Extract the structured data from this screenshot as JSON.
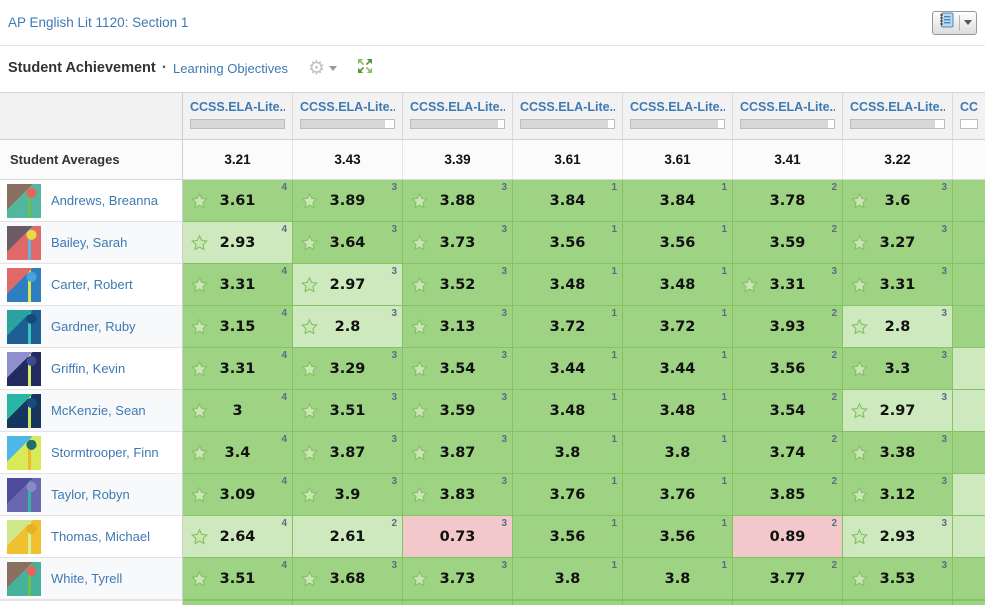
{
  "header": {
    "course_title": "AP English Lit 1120: Section 1"
  },
  "section": {
    "title": "Student Achievement",
    "separator": "·",
    "link": "Learning Objectives"
  },
  "colors": {
    "cell_high": "#9ed383",
    "cell_mid": "#cde9bd",
    "cell_low": "#f2c8cb",
    "cell_border": "#83c364",
    "link_blue": "#3e79b4",
    "count_gray": "#5b6b85"
  },
  "table": {
    "averages_label": "Student Averages",
    "columns": [
      {
        "label": "CCSS.ELA-Lite...",
        "progress_pct": 100,
        "average": "3.21"
      },
      {
        "label": "CCSS.ELA-Lite...",
        "progress_pct": 90,
        "average": "3.43"
      },
      {
        "label": "CCSS.ELA-Lite...",
        "progress_pct": 94,
        "average": "3.39"
      },
      {
        "label": "CCSS.ELA-Lite...",
        "progress_pct": 94,
        "average": "3.61"
      },
      {
        "label": "CCSS.ELA-Lite...",
        "progress_pct": 94,
        "average": "3.61"
      },
      {
        "label": "CCSS.ELA-Lite...",
        "progress_pct": 94,
        "average": "3.41"
      },
      {
        "label": "CCSS.ELA-Lite...",
        "progress_pct": 90,
        "average": "3.22"
      },
      {
        "label": "CCSS.ELA-Lite...",
        "progress_pct": 0,
        "average": "",
        "partial": true
      }
    ],
    "students": [
      {
        "name": "Andrews, Breanna",
        "avatar_colors": [
          "#52b79e",
          "#8a6e60",
          "#6fbf4e",
          "#e4645f"
        ],
        "scores": [
          {
            "value": "3.61",
            "count": "4",
            "star": true,
            "level": "high"
          },
          {
            "value": "3.89",
            "count": "3",
            "star": true,
            "level": "high"
          },
          {
            "value": "3.88",
            "count": "3",
            "star": true,
            "level": "high"
          },
          {
            "value": "3.84",
            "count": "1",
            "star": false,
            "level": "high"
          },
          {
            "value": "3.84",
            "count": "1",
            "star": false,
            "level": "high"
          },
          {
            "value": "3.78",
            "count": "2",
            "star": false,
            "level": "high"
          },
          {
            "value": "3.6",
            "count": "3",
            "star": true,
            "level": "high"
          },
          {
            "value": "",
            "count": "",
            "star": false,
            "level": "high",
            "partial": true
          }
        ]
      },
      {
        "name": "Bailey, Sarah",
        "avatar_colors": [
          "#e06a6a",
          "#6e5a66",
          "#5bb6e8",
          "#ead93f"
        ],
        "scores": [
          {
            "value": "2.93",
            "count": "4",
            "star": true,
            "level": "mid"
          },
          {
            "value": "3.64",
            "count": "3",
            "star": true,
            "level": "high"
          },
          {
            "value": "3.73",
            "count": "3",
            "star": true,
            "level": "high"
          },
          {
            "value": "3.56",
            "count": "1",
            "star": false,
            "level": "high"
          },
          {
            "value": "3.56",
            "count": "1",
            "star": false,
            "level": "high"
          },
          {
            "value": "3.59",
            "count": "2",
            "star": false,
            "level": "high"
          },
          {
            "value": "3.27",
            "count": "3",
            "star": true,
            "level": "high"
          },
          {
            "value": "",
            "count": "",
            "star": false,
            "level": "high",
            "partial": true
          }
        ]
      },
      {
        "name": "Carter, Robert",
        "avatar_colors": [
          "#2d7fc1",
          "#e06a6a",
          "#d9e84a",
          "#4aa3d8"
        ],
        "scores": [
          {
            "value": "3.31",
            "count": "4",
            "star": true,
            "level": "high"
          },
          {
            "value": "2.97",
            "count": "3",
            "star": true,
            "level": "mid"
          },
          {
            "value": "3.52",
            "count": "3",
            "star": true,
            "level": "high"
          },
          {
            "value": "3.48",
            "count": "1",
            "star": false,
            "level": "high"
          },
          {
            "value": "3.48",
            "count": "1",
            "star": false,
            "level": "high"
          },
          {
            "value": "3.31",
            "count": "3",
            "star": true,
            "level": "high"
          },
          {
            "value": "3.31",
            "count": "3",
            "star": true,
            "level": "high"
          },
          {
            "value": "",
            "count": "",
            "star": false,
            "level": "high",
            "partial": true
          }
        ]
      },
      {
        "name": "Gardner, Ruby",
        "avatar_colors": [
          "#1d5e94",
          "#2aa3a0",
          "#3cc3c0",
          "#17497a"
        ],
        "scores": [
          {
            "value": "3.15",
            "count": "4",
            "star": true,
            "level": "high"
          },
          {
            "value": "2.8",
            "count": "3",
            "star": true,
            "level": "mid"
          },
          {
            "value": "3.13",
            "count": "3",
            "star": true,
            "level": "high"
          },
          {
            "value": "3.72",
            "count": "1",
            "star": false,
            "level": "high"
          },
          {
            "value": "3.72",
            "count": "1",
            "star": false,
            "level": "high"
          },
          {
            "value": "3.93",
            "count": "2",
            "star": false,
            "level": "high"
          },
          {
            "value": "2.8",
            "count": "3",
            "star": true,
            "level": "mid"
          },
          {
            "value": "",
            "count": "",
            "star": false,
            "level": "high",
            "partial": true
          }
        ]
      },
      {
        "name": "Griffin, Kevin",
        "avatar_colors": [
          "#222b5e",
          "#8f8fd0",
          "#d6ef6a",
          "#3a4a8a"
        ],
        "scores": [
          {
            "value": "3.31",
            "count": "4",
            "star": true,
            "level": "high"
          },
          {
            "value": "3.29",
            "count": "3",
            "star": true,
            "level": "high"
          },
          {
            "value": "3.54",
            "count": "3",
            "star": true,
            "level": "high"
          },
          {
            "value": "3.44",
            "count": "1",
            "star": false,
            "level": "high"
          },
          {
            "value": "3.44",
            "count": "1",
            "star": false,
            "level": "high"
          },
          {
            "value": "3.56",
            "count": "2",
            "star": false,
            "level": "high"
          },
          {
            "value": "3.3",
            "count": "3",
            "star": true,
            "level": "high"
          },
          {
            "value": "",
            "count": "",
            "star": false,
            "level": "mid",
            "partial": true
          }
        ]
      },
      {
        "name": "McKenzie, Sean",
        "avatar_colors": [
          "#16355f",
          "#2ab5a5",
          "#cfe95a",
          "#1d4a7e"
        ],
        "scores": [
          {
            "value": "3",
            "count": "4",
            "star": true,
            "level": "high"
          },
          {
            "value": "3.51",
            "count": "3",
            "star": true,
            "level": "high"
          },
          {
            "value": "3.59",
            "count": "3",
            "star": true,
            "level": "high"
          },
          {
            "value": "3.48",
            "count": "1",
            "star": false,
            "level": "high"
          },
          {
            "value": "3.48",
            "count": "1",
            "star": false,
            "level": "high"
          },
          {
            "value": "3.54",
            "count": "2",
            "star": false,
            "level": "high"
          },
          {
            "value": "2.97",
            "count": "3",
            "star": true,
            "level": "mid"
          },
          {
            "value": "",
            "count": "",
            "star": false,
            "level": "mid",
            "partial": true
          }
        ]
      },
      {
        "name": "Stormtrooper, Finn",
        "avatar_colors": [
          "#d9ea58",
          "#4db8e8",
          "#ecba2a",
          "#1e6f6e"
        ],
        "scores": [
          {
            "value": "3.4",
            "count": "4",
            "star": true,
            "level": "high"
          },
          {
            "value": "3.87",
            "count": "3",
            "star": true,
            "level": "high"
          },
          {
            "value": "3.87",
            "count": "3",
            "star": true,
            "level": "high"
          },
          {
            "value": "3.8",
            "count": "1",
            "star": false,
            "level": "high"
          },
          {
            "value": "3.8",
            "count": "1",
            "star": false,
            "level": "high"
          },
          {
            "value": "3.74",
            "count": "2",
            "star": false,
            "level": "high"
          },
          {
            "value": "3.38",
            "count": "3",
            "star": true,
            "level": "high"
          },
          {
            "value": "",
            "count": "",
            "star": false,
            "level": "high",
            "partial": true
          }
        ]
      },
      {
        "name": "Taylor, Robyn",
        "avatar_colors": [
          "#6a66b0",
          "#4f4a9e",
          "#35b5a5",
          "#8a87c5"
        ],
        "scores": [
          {
            "value": "3.09",
            "count": "4",
            "star": true,
            "level": "high"
          },
          {
            "value": "3.9",
            "count": "3",
            "star": true,
            "level": "high"
          },
          {
            "value": "3.83",
            "count": "3",
            "star": true,
            "level": "high"
          },
          {
            "value": "3.76",
            "count": "1",
            "star": false,
            "level": "high"
          },
          {
            "value": "3.76",
            "count": "1",
            "star": false,
            "level": "high"
          },
          {
            "value": "3.85",
            "count": "2",
            "star": false,
            "level": "high"
          },
          {
            "value": "3.12",
            "count": "3",
            "star": true,
            "level": "high"
          },
          {
            "value": "",
            "count": "",
            "star": false,
            "level": "mid",
            "partial": true
          }
        ]
      },
      {
        "name": "Thomas, Michael",
        "avatar_colors": [
          "#f0c030",
          "#cfe88a",
          "#d8ef9a",
          "#e8b020"
        ],
        "scores": [
          {
            "value": "2.64",
            "count": "4",
            "star": true,
            "level": "mid"
          },
          {
            "value": "2.61",
            "count": "2",
            "star": false,
            "level": "mid"
          },
          {
            "value": "0.73",
            "count": "3",
            "star": false,
            "level": "low"
          },
          {
            "value": "3.56",
            "count": "1",
            "star": false,
            "level": "high"
          },
          {
            "value": "3.56",
            "count": "1",
            "star": false,
            "level": "high"
          },
          {
            "value": "0.89",
            "count": "2",
            "star": false,
            "level": "low"
          },
          {
            "value": "2.93",
            "count": "3",
            "star": true,
            "level": "mid"
          },
          {
            "value": "",
            "count": "",
            "star": false,
            "level": "mid",
            "partial": true
          }
        ]
      },
      {
        "name": "White, Tyrell",
        "avatar_colors": [
          "#45b39c",
          "#8a6e60",
          "#6fbf4e",
          "#e4645f"
        ],
        "scores": [
          {
            "value": "3.51",
            "count": "4",
            "star": true,
            "level": "high"
          },
          {
            "value": "3.68",
            "count": "3",
            "star": true,
            "level": "high"
          },
          {
            "value": "3.73",
            "count": "3",
            "star": true,
            "level": "high"
          },
          {
            "value": "3.8",
            "count": "1",
            "star": false,
            "level": "high"
          },
          {
            "value": "3.8",
            "count": "1",
            "star": false,
            "level": "high"
          },
          {
            "value": "3.77",
            "count": "2",
            "star": false,
            "level": "high"
          },
          {
            "value": "3.53",
            "count": "3",
            "star": true,
            "level": "high"
          },
          {
            "value": "",
            "count": "",
            "star": false,
            "level": "high",
            "partial": true
          }
        ]
      }
    ]
  }
}
